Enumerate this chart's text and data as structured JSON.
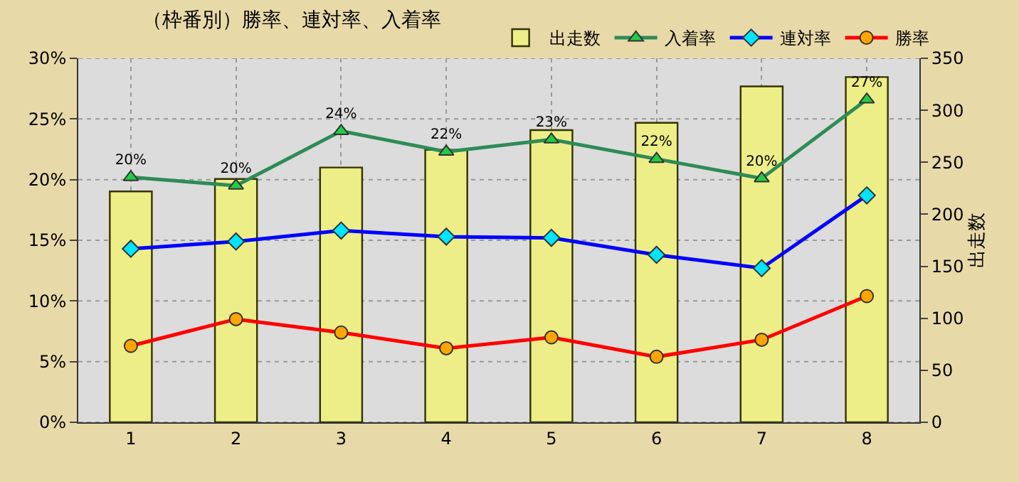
{
  "chart_data": {
    "type": "line",
    "title": "（枠番別）勝率、連対率、入着率",
    "y2label": "出走数",
    "categories": [
      "1",
      "2",
      "3",
      "4",
      "5",
      "6",
      "7",
      "8"
    ],
    "series": [
      {
        "name": "出走数",
        "type": "bar",
        "axis": "y2",
        "color": "#eeee88",
        "values": [
          222,
          234,
          245,
          262,
          281,
          288,
          323,
          332
        ]
      },
      {
        "name": "入着率",
        "color": "#2e8b57",
        "marker": "triangle",
        "values": [
          20.2,
          19.5,
          24.0,
          22.3,
          23.3,
          21.7,
          20.1,
          26.6
        ],
        "value_labels": [
          "20%",
          "20%",
          "24%",
          "22%",
          "23%",
          "22%",
          "20%",
          "27%"
        ]
      },
      {
        "name": "連対率",
        "color": "#0000ff",
        "marker": "diamond",
        "values": [
          14.3,
          14.9,
          15.8,
          15.3,
          15.2,
          13.8,
          12.7,
          18.7
        ]
      },
      {
        "name": "勝率",
        "color": "#ff0000",
        "marker": "circle",
        "values": [
          6.3,
          8.5,
          7.4,
          6.1,
          7.0,
          5.4,
          6.8,
          10.4
        ]
      }
    ],
    "ylim": [
      0,
      30
    ],
    "yticks": [
      {
        "value": 0,
        "label": "0%"
      },
      {
        "value": 5,
        "label": "5%"
      },
      {
        "value": 10,
        "label": "10%"
      },
      {
        "value": 15,
        "label": "15%"
      },
      {
        "value": 20,
        "label": "20%"
      },
      {
        "value": 25,
        "label": "25%"
      },
      {
        "value": 30,
        "label": "30%"
      }
    ],
    "y2lim": [
      0,
      350
    ],
    "y2ticks": [
      0,
      50,
      100,
      150,
      200,
      250,
      300,
      350
    ],
    "grid": true,
    "legend": "top right"
  }
}
